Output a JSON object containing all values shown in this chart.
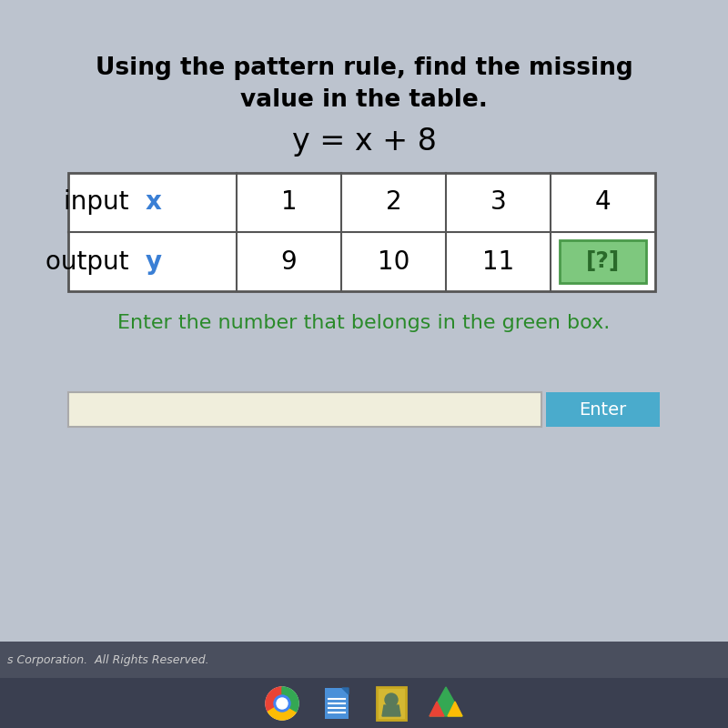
{
  "title_line1": "Using the pattern rule, find the missing",
  "title_line2": "value in the table.",
  "equation": "y = x + 8",
  "row1_values": [
    "1",
    "2",
    "3",
    "4"
  ],
  "row2_values": [
    "9",
    "10",
    "11",
    "[?]"
  ],
  "xy_color": "#3a7fd5",
  "green_box_color": "#7ec87e",
  "green_box_border": "#4a9a4a",
  "green_box_text_color": "#2a6a2a",
  "instruction_text": "Enter the number that belongs in the green box.",
  "instruction_color": "#2a8a2a",
  "bg_color": "#bcc3ce",
  "table_bg": "#ffffff",
  "table_border_color": "#555555",
  "enter_button_color": "#4aabcc",
  "enter_button_text": "Enter",
  "enter_button_text_color": "#ffffff",
  "input_box_color": "#f0eedc",
  "title_fontsize": 19,
  "equation_fontsize": 24,
  "table_fontsize": 20,
  "instruction_fontsize": 16,
  "bottom_bar_color": "#4a4f5e",
  "taskbar_color": "#3a3f50",
  "copyright_text": "s Corporation.  All Rights Reserved.",
  "copyright_color": "#cccccc"
}
